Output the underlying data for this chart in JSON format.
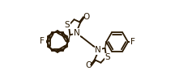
{
  "bg_color": "#ffffff",
  "bond_color": "#2a1800",
  "lw": 1.3,
  "xlim": [
    0,
    1
  ],
  "ylim": [
    0,
    1
  ],
  "figsize": [
    2.16,
    1.03
  ],
  "dpi": 100
}
